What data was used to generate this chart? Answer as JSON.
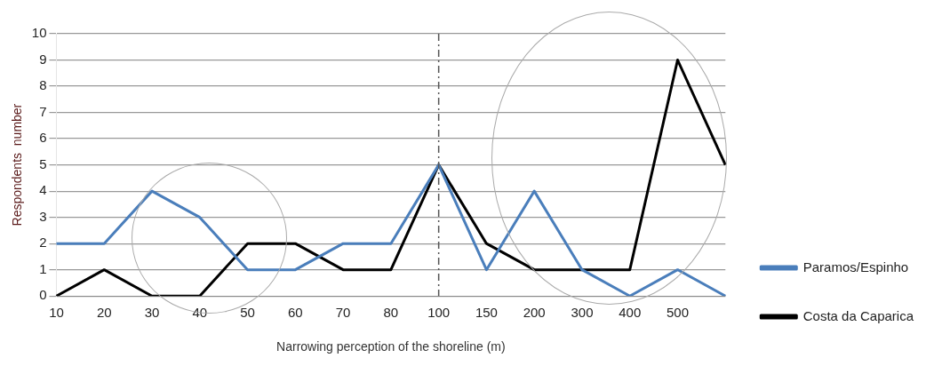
{
  "chart_data": {
    "type": "line",
    "xlabel": "Narrowing perception of the shoreline (m)",
    "ylabel": "Respondents  number",
    "categories": [
      "10",
      "20",
      "30",
      "40",
      "50",
      "60",
      "70",
      "80",
      "100",
      "150",
      "200",
      "300",
      "400",
      "500",
      null
    ],
    "series": [
      {
        "name": "Paramos/Espinho",
        "color": "#4a7ebb",
        "values": [
          2,
          2,
          4,
          3,
          1,
          1,
          2,
          2,
          5,
          1,
          4,
          1,
          0,
          1,
          0
        ]
      },
      {
        "name": "Costa da Caparica",
        "color": "#000000",
        "values": [
          0,
          1,
          0,
          0,
          2,
          2,
          1,
          1,
          5,
          2,
          1,
          1,
          1,
          9,
          5
        ]
      }
    ],
    "ylim": [
      0,
      10
    ],
    "yticks": [
      0,
      1,
      2,
      3,
      4,
      5,
      6,
      7,
      8,
      9,
      10
    ],
    "grid": "y",
    "legend": "bottom right",
    "marker": "none",
    "line_style": "solid",
    "ref_lines": [
      {
        "axis": "x",
        "value": "100",
        "color": "#555555",
        "line_style": "dashed"
      }
    ]
  }
}
